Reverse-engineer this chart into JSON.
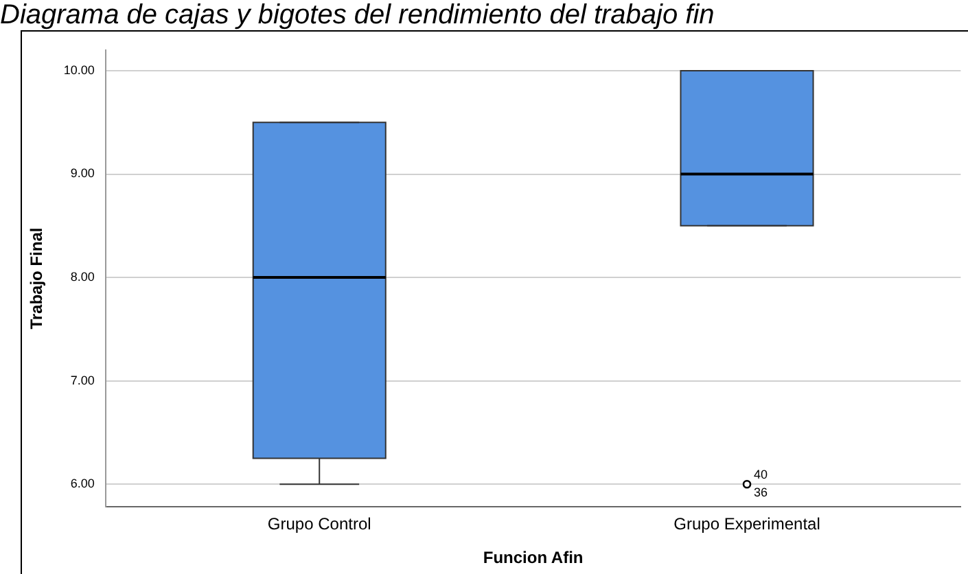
{
  "chart_data": {
    "type": "box",
    "title": "Diagrama de cajas y bigotes del rendimiento del trabajo fin",
    "xlabel": "Funcion Afin",
    "ylabel": "Trabajo Final",
    "categories": [
      "Grupo Control",
      "Grupo Experimental"
    ],
    "boxes": [
      {
        "low": 6,
        "q1": 6.25,
        "median": 8,
        "q3": 9.5,
        "high": 9.5
      },
      {
        "low": 8.5,
        "q1": 8.5,
        "median": 9,
        "q3": 10,
        "high": 10,
        "outliers": [
          6
        ]
      }
    ],
    "color": "#5592e0",
    "ylim": [
      5.78,
      10.2
    ],
    "yticks": [
      {
        "value": 6,
        "label": "6.00"
      },
      {
        "value": 7,
        "label": "7.00"
      },
      {
        "value": 8,
        "label": "8.00"
      },
      {
        "value": 9,
        "label": "9.00"
      },
      {
        "value": 10,
        "label": "10.00"
      }
    ],
    "grid": "y",
    "annotations": [
      "40",
      "36"
    ]
  }
}
